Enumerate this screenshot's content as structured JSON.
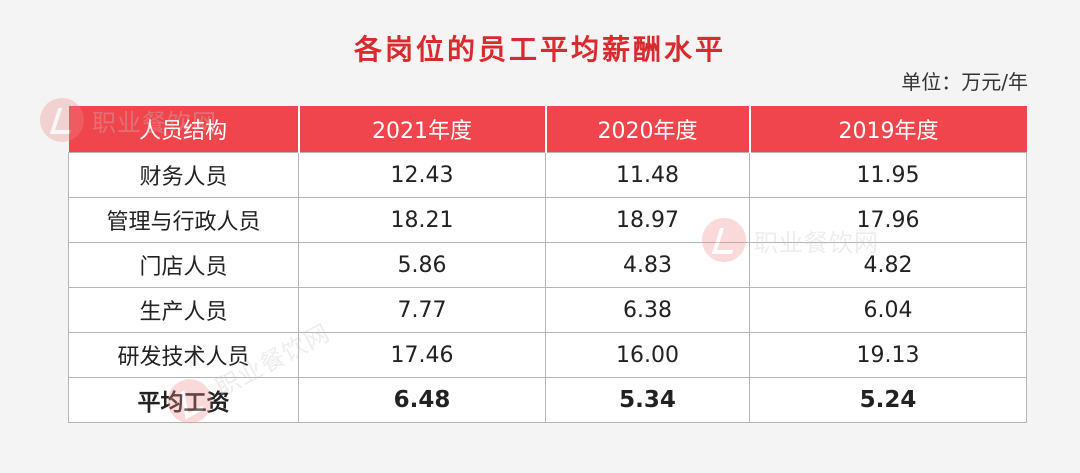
{
  "chart_data": {
    "type": "table",
    "title": "各岗位的员工平均薪酬水平",
    "unit": "单位：万元/年",
    "columns": [
      "人员结构",
      "2021年度",
      "2020年度",
      "2019年度"
    ],
    "rows": [
      [
        "财务人员",
        "12.43",
        "11.48",
        "11.95"
      ],
      [
        "管理与行政人员",
        "18.21",
        "18.97",
        "17.96"
      ],
      [
        "门店人员",
        "5.86",
        "4.83",
        "4.82"
      ],
      [
        "生产人员",
        "7.77",
        "6.38",
        "6.04"
      ],
      [
        "研发技术人员",
        "17.46",
        "16.00",
        "19.13"
      ],
      [
        "平均工资",
        "6.48",
        "5.34",
        "5.24"
      ]
    ]
  },
  "watermark": {
    "text": "职业餐饮网"
  },
  "colors": {
    "title": "#d82a2f",
    "header_bg": "#f0454c",
    "header_text": "#ffffff",
    "border": "#b5b5b5"
  }
}
